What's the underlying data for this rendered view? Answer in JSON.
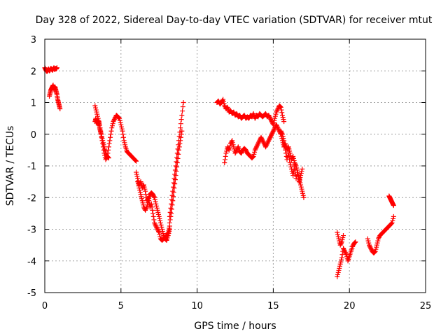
{
  "chart_data": {
    "type": "scatter",
    "title": "Day 328 of 2022, Sidereal Day-to-day VTEC variation (SDTVAR) for receiver mtut",
    "xlabel": "GPS time / hours",
    "ylabel": "SDTVAR / TECUs",
    "xlim": [
      0,
      25
    ],
    "ylim": [
      -5,
      3
    ],
    "xticks": [
      0,
      5,
      10,
      15,
      20,
      25
    ],
    "yticks": [
      -5,
      -4,
      -3,
      -2,
      -1,
      0,
      1,
      2,
      3
    ],
    "grid": true,
    "marker": "+",
    "color": "#ff0000",
    "series": [
      {
        "name": "SDTVAR",
        "x": [
          0.0,
          0.05,
          0.1,
          0.15,
          0.2,
          0.25,
          0.3,
          0.35,
          0.4,
          0.45,
          0.5,
          0.55,
          0.6,
          0.65,
          0.7,
          0.75,
          0.8,
          0.3,
          0.35,
          0.4,
          0.45,
          0.5,
          0.55,
          0.6,
          0.65,
          0.7,
          0.75,
          0.8,
          0.85,
          0.9,
          0.95,
          1.0,
          3.3,
          3.4,
          3.5,
          3.6,
          3.7,
          3.8,
          3.9,
          4.0,
          4.1,
          4.2,
          4.3,
          4.4,
          4.5,
          4.6,
          4.7,
          4.8,
          4.9,
          5.0,
          5.1,
          5.2,
          5.3,
          5.4,
          5.5,
          5.6,
          5.7,
          5.8,
          5.9,
          6.0,
          3.3,
          3.35,
          3.4,
          3.45,
          3.5,
          3.55,
          3.6,
          3.65,
          3.7,
          3.8,
          3.9,
          4.0,
          4.1,
          4.2,
          6.0,
          6.1,
          6.2,
          6.3,
          6.4,
          6.5,
          6.6,
          6.7,
          6.8,
          6.9,
          7.0,
          7.1,
          7.2,
          7.3,
          7.4,
          7.5,
          7.6,
          7.7,
          7.8,
          7.9,
          8.0,
          8.1,
          8.2,
          6.1,
          6.2,
          6.3,
          6.4,
          6.5,
          6.6,
          6.7,
          6.8,
          6.9,
          7.0,
          7.1,
          7.2,
          7.3,
          7.4,
          7.5,
          7.6,
          7.7,
          7.8,
          7.9,
          8.0,
          8.1,
          8.2,
          8.2,
          8.3,
          8.4,
          8.5,
          8.6,
          8.7,
          8.8,
          8.9,
          9.0,
          9.1,
          8.2,
          8.3,
          8.4,
          8.5,
          8.6,
          8.7,
          8.8,
          8.9,
          9.0,
          11.3,
          11.4,
          11.5,
          11.6,
          11.7,
          11.8,
          11.9,
          12.0,
          12.1,
          12.2,
          12.3,
          12.4,
          12.5,
          12.6,
          12.7,
          12.8,
          12.9,
          13.0,
          13.1,
          13.2,
          13.3,
          13.4,
          13.5,
          13.6,
          13.7,
          13.8,
          13.9,
          14.0,
          14.1,
          14.2,
          14.3,
          14.4,
          14.5,
          14.6,
          14.7,
          14.8,
          14.9,
          15.0,
          15.1,
          15.2,
          15.3,
          15.4,
          15.5,
          15.6,
          15.7,
          11.8,
          11.9,
          12.0,
          12.1,
          12.2,
          12.3,
          12.4,
          12.5,
          12.6,
          12.7,
          12.8,
          12.9,
          13.0,
          13.1,
          13.2,
          13.3,
          13.4,
          13.5,
          13.6,
          13.7,
          13.8,
          13.9,
          14.0,
          14.1,
          14.2,
          14.3,
          14.4,
          14.5,
          14.6,
          14.7,
          14.8,
          14.9,
          15.0,
          15.1,
          15.2,
          15.3,
          15.4,
          15.5,
          15.6,
          15.7,
          15.8,
          15.9,
          16.0,
          16.1,
          16.2,
          16.3,
          16.4,
          16.5,
          16.6,
          16.7,
          16.8,
          16.9,
          17.0,
          15.5,
          15.6,
          15.7,
          15.8,
          15.9,
          16.0,
          16.1,
          16.2,
          16.3,
          16.4,
          16.5,
          16.6,
          16.7,
          16.8,
          16.9,
          19.2,
          19.3,
          19.4,
          19.5,
          19.6,
          19.7,
          19.8,
          19.9,
          20.0,
          20.1,
          20.2,
          20.3,
          20.4,
          19.2,
          19.3,
          19.4,
          19.5,
          19.6,
          21.2,
          21.3,
          21.4,
          21.5,
          21.6,
          21.7,
          21.8,
          21.9,
          22.0,
          22.1,
          22.2,
          22.3,
          22.4,
          22.5,
          22.6,
          22.7,
          22.8,
          22.9,
          22.6,
          22.65,
          22.7,
          22.75,
          22.8,
          22.85,
          22.9
        ],
        "y": [
          2.1,
          2.05,
          2.0,
          1.98,
          2.02,
          2.06,
          2.0,
          2.03,
          2.08,
          2.05,
          2.02,
          2.06,
          2.1,
          2.04,
          2.08,
          2.06,
          2.1,
          1.2,
          1.3,
          1.4,
          1.45,
          1.5,
          1.55,
          1.4,
          1.5,
          1.45,
          1.35,
          1.25,
          1.1,
          1.0,
          0.9,
          0.8,
          0.9,
          0.7,
          0.5,
          0.3,
          0.0,
          -0.3,
          -0.6,
          -0.8,
          -0.7,
          -0.4,
          -0.1,
          0.2,
          0.4,
          0.5,
          0.6,
          0.55,
          0.5,
          0.3,
          0.1,
          -0.2,
          -0.4,
          -0.55,
          -0.6,
          -0.65,
          -0.7,
          -0.75,
          -0.8,
          -0.85,
          0.4,
          0.5,
          0.35,
          0.45,
          0.3,
          0.4,
          0.2,
          0.1,
          0.0,
          -0.2,
          -0.4,
          -0.6,
          -0.7,
          -0.75,
          -1.2,
          -1.4,
          -1.6,
          -1.5,
          -1.7,
          -1.6,
          -1.8,
          -2.1,
          -2.0,
          -2.3,
          -2.2,
          -2.5,
          -2.8,
          -2.9,
          -3.0,
          -3.1,
          -3.3,
          -3.35,
          -3.3,
          -3.25,
          -3.2,
          -3.1,
          -2.9,
          -1.5,
          -1.7,
          -1.9,
          -2.1,
          -2.3,
          -2.4,
          -2.3,
          -2.1,
          -1.9,
          -1.85,
          -1.9,
          -2.0,
          -2.2,
          -2.4,
          -2.6,
          -2.8,
          -3.0,
          -3.2,
          -3.3,
          -3.35,
          -3.2,
          -3.0,
          -2.6,
          -2.2,
          -1.8,
          -1.4,
          -1.0,
          -0.6,
          -0.2,
          0.2,
          0.6,
          1.0,
          -2.8,
          -2.5,
          -2.1,
          -1.7,
          -1.3,
          -0.9,
          -0.5,
          -0.2,
          0.1,
          1.0,
          1.05,
          0.95,
          1.0,
          1.1,
          0.9,
          0.8,
          0.85,
          0.7,
          0.75,
          0.65,
          0.7,
          0.6,
          0.65,
          0.55,
          0.6,
          0.5,
          0.55,
          0.6,
          0.5,
          0.55,
          0.5,
          0.6,
          0.55,
          0.65,
          0.5,
          0.6,
          0.55,
          0.65,
          0.6,
          0.55,
          0.6,
          0.65,
          0.55,
          0.6,
          0.5,
          0.4,
          0.3,
          0.5,
          0.7,
          0.8,
          0.9,
          0.85,
          0.6,
          0.4,
          -0.9,
          -0.6,
          -0.4,
          -0.5,
          -0.3,
          -0.2,
          -0.4,
          -0.6,
          -0.5,
          -0.4,
          -0.55,
          -0.6,
          -0.5,
          -0.45,
          -0.5,
          -0.6,
          -0.65,
          -0.7,
          -0.75,
          -0.7,
          -0.5,
          -0.4,
          -0.3,
          -0.2,
          -0.1,
          -0.2,
          -0.3,
          -0.4,
          -0.3,
          -0.2,
          -0.1,
          0.0,
          0.1,
          0.2,
          0.3,
          0.2,
          0.1,
          0.0,
          -0.2,
          -0.4,
          -0.3,
          -0.5,
          -0.4,
          -0.6,
          -0.8,
          -0.7,
          -0.9,
          -1.0,
          -1.2,
          -1.4,
          -1.6,
          -1.8,
          -2.0,
          0.1,
          0.0,
          -0.2,
          -0.5,
          -0.8,
          -0.6,
          -0.9,
          -1.1,
          -1.3,
          -1.0,
          -1.4,
          -1.2,
          -1.5,
          -1.3,
          -1.1,
          -4.5,
          -4.3,
          -4.1,
          -3.9,
          -3.6,
          -3.7,
          -3.8,
          -4.0,
          -3.85,
          -3.7,
          -3.55,
          -3.45,
          -3.4,
          -3.1,
          -3.3,
          -3.5,
          -3.4,
          -3.2,
          -3.3,
          -3.5,
          -3.6,
          -3.7,
          -3.75,
          -3.7,
          -3.5,
          -3.3,
          -3.2,
          -3.15,
          -3.1,
          -3.05,
          -3.0,
          -2.95,
          -2.9,
          -2.85,
          -2.8,
          -2.6,
          -1.95,
          -2.0,
          -2.05,
          -2.1,
          -2.15,
          -2.2,
          -2.25
        ]
      }
    ]
  }
}
